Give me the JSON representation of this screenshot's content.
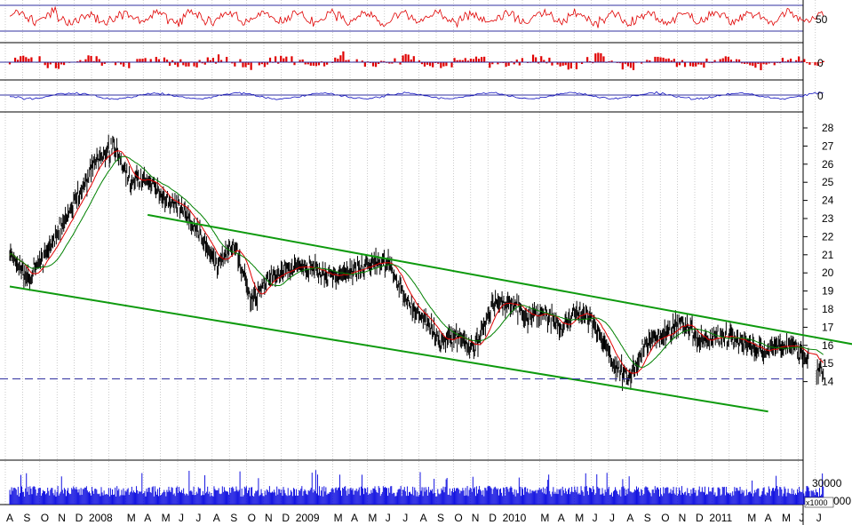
{
  "chart_data": {
    "type": "line",
    "price_axis": {
      "ylim": [
        13.4,
        28.6
      ],
      "ticks": [
        "14",
        "15",
        "16",
        "17",
        "18",
        "19",
        "20",
        "21",
        "22",
        "23",
        "24",
        "25",
        "26",
        "27",
        "28"
      ]
    },
    "indicator_ticks": {
      "rsi": "50",
      "momentum": "0",
      "macd": "0"
    },
    "rsi_reference_lines": [
      70,
      30
    ],
    "volume_axis": {
      "tick_label": "30000",
      "partial_tick": "000",
      "unit": "x1000"
    },
    "month_labels": [
      "A",
      "S",
      "O",
      "N",
      "D",
      "2008",
      "F",
      "M",
      "A",
      "M",
      "J",
      "J",
      "A",
      "S",
      "O",
      "N",
      "D",
      "2009",
      "F",
      "M",
      "A",
      "M",
      "J",
      "J",
      "A",
      "S",
      "O",
      "N",
      "D",
      "2010",
      "F",
      "M",
      "A",
      "M",
      "J",
      "J",
      "A",
      "S",
      "O",
      "N",
      "D",
      "2011",
      "F",
      "M",
      "A",
      "M",
      "J",
      "J"
    ],
    "hidden_month_labels": [
      6,
      18,
      30,
      42
    ],
    "price_series": {
      "name": "",
      "x": [
        0,
        1,
        3,
        4,
        5,
        6,
        7,
        8,
        9,
        10,
        11,
        12,
        13,
        14,
        15,
        16,
        17,
        18,
        19,
        20,
        21,
        22,
        23,
        24,
        25,
        26,
        27,
        28,
        29,
        30,
        31,
        32,
        33,
        34,
        35,
        36,
        37,
        38,
        39,
        40,
        41,
        42,
        43,
        44,
        45,
        46,
        46.8,
        47.2
      ],
      "close": [
        21.3,
        19.5,
        22.5,
        24.3,
        26.2,
        27,
        25,
        25.2,
        24,
        23.5,
        22.2,
        20.5,
        21.5,
        18.5,
        19.8,
        20.2,
        20.5,
        20,
        19.8,
        20.2,
        20.5,
        20.6,
        18.5,
        17.5,
        16.2,
        16.5,
        15.8,
        18.2,
        18.5,
        17.5,
        17.8,
        17,
        17.9,
        17.2,
        15,
        14.2,
        16.2,
        16.6,
        17.4,
        16.2,
        16.5,
        16.4,
        15.9,
        15.8,
        16,
        15.7,
        14.6,
        14.5
      ]
    },
    "moving_averages": [
      {
        "color": "#e00000",
        "period_months": 1
      },
      {
        "color": "#008000",
        "period_months": 2
      }
    ],
    "channel_lines": [
      {
        "x": [
          0,
          44
        ],
        "y": [
          19.25,
          12.35
        ]
      },
      {
        "x": [
          8,
          49
        ],
        "y": [
          23.2,
          16.05
        ]
      }
    ],
    "support_level": 14.15,
    "colors": {
      "price": "#000000",
      "channel": "#0e9a0e",
      "ma_short": "#e00000",
      "ma_long": "#008000",
      "rsi": "#e00000",
      "momentum": "#e00000",
      "macd": "#1010c0",
      "volume": "#1414e0",
      "support": "#3030a0",
      "grid": "#a8a8a8"
    }
  }
}
